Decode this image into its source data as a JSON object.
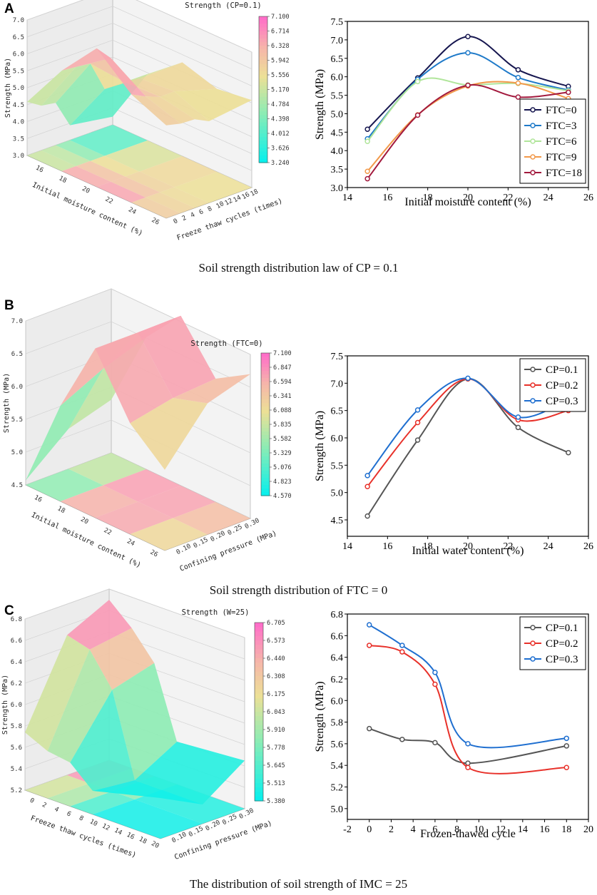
{
  "figure": {
    "panels": [
      {
        "label": "A",
        "caption": "Soil strength distribution law of CP = 0.1",
        "surface": {
          "title": "Strength (CP=0.1)",
          "z_label": "Strength (MPa)",
          "x_label": "Initial moisture content (%)",
          "y_label": "Freeze thaw cycles (times)",
          "z_ticks": [
            "3.0",
            "3.5",
            "4.0",
            "4.5",
            "5.0",
            "5.5",
            "6.0",
            "6.5",
            "7.0"
          ],
          "x_ticks": [
            "16",
            "18",
            "20",
            "22",
            "24",
            "26"
          ],
          "y_ticks": [
            "0",
            "2",
            "4",
            "6",
            "8",
            "10",
            "12",
            "14",
            "16",
            "18"
          ],
          "colorbar_ticks": [
            "7.100",
            "6.714",
            "6.328",
            "5.942",
            "5.556",
            "5.170",
            "4.784",
            "4.398",
            "4.012",
            "3.626",
            "3.240"
          ],
          "zmin": 3.0,
          "zmax": 7.0,
          "cmin": 3.24,
          "cmax": 7.1,
          "grid_x": [
            15,
            17.5,
            20,
            22.5,
            25
          ],
          "grid_y": [
            0,
            3,
            6,
            9,
            18
          ],
          "grid_z": [
            [
              4.58,
              5.97,
              7.09,
              6.19,
              5.74
            ],
            [
              4.32,
              5.93,
              6.65,
              5.98,
              5.64
            ],
            [
              4.25,
              5.87,
              5.78,
              5.82,
              5.62
            ],
            [
              3.44,
              4.97,
              5.75,
              5.83,
              5.41
            ],
            [
              3.24,
              4.96,
              5.77,
              5.45,
              5.58
            ]
          ]
        },
        "chart_data": {
          "type": "line",
          "xlabel": "Initial moisture content (%)",
          "ylabel": "Strength (MPa)",
          "xlim": [
            14,
            26
          ],
          "ylim": [
            3.0,
            7.5
          ],
          "xticks": [
            "14",
            "16",
            "18",
            "20",
            "22",
            "24",
            "26"
          ],
          "yticks": [
            "3.0",
            "3.5",
            "4.0",
            "4.5",
            "5.0",
            "5.5",
            "6.0",
            "6.5",
            "7.0",
            "7.5"
          ],
          "legend_position": "bottom-right",
          "x": [
            15,
            17.5,
            20,
            22.5,
            25
          ],
          "series": [
            {
              "name": "FTC=0",
              "color": "#16164f",
              "values": [
                4.58,
                5.97,
                7.09,
                6.19,
                5.74
              ]
            },
            {
              "name": "FTC=3",
              "color": "#1f7ac9",
              "values": [
                4.32,
                5.93,
                6.65,
                5.98,
                5.64
              ]
            },
            {
              "name": "FTC=6",
              "color": "#b0e59a",
              "values": [
                4.25,
                5.87,
                5.78,
                5.82,
                5.62
              ]
            },
            {
              "name": "FTC=9",
              "color": "#f2994a",
              "values": [
                3.44,
                4.97,
                5.75,
                5.83,
                5.41
              ]
            },
            {
              "name": "FTC=18",
              "color": "#a2193d",
              "values": [
                3.24,
                4.96,
                5.77,
                5.45,
                5.58
              ]
            }
          ]
        }
      },
      {
        "label": "B",
        "caption": "Soil strength distribution of FTC = 0",
        "surface": {
          "title": "Strength (FTC=0)",
          "z_label": "Strength (MPa)",
          "x_label": "Initial moisture content (%)",
          "y_label": "Confining pressure (MPa)",
          "z_ticks": [
            "4.5",
            "5.0",
            "5.5",
            "6.0",
            "6.5",
            "7.0"
          ],
          "x_ticks": [
            "16",
            "18",
            "20",
            "22",
            "24",
            "26"
          ],
          "y_ticks": [
            "0.10",
            "0.15",
            "0.20",
            "0.25",
            "0.30"
          ],
          "colorbar_ticks": [
            "7.100",
            "6.847",
            "6.594",
            "6.341",
            "6.088",
            "5.835",
            "5.582",
            "5.329",
            "5.076",
            "4.823",
            "4.570"
          ],
          "zmin": 4.5,
          "zmax": 7.0,
          "cmin": 4.57,
          "cmax": 7.1,
          "grid_x": [
            15,
            17.5,
            20,
            22.5,
            25
          ],
          "grid_y": [
            0.1,
            0.2,
            0.3
          ],
          "grid_z": [
            [
              4.57,
              5.96,
              7.08,
              6.19,
              5.73
            ],
            [
              5.11,
              6.28,
              7.08,
              6.33,
              6.5
            ],
            [
              5.31,
              6.51,
              7.09,
              6.38,
              6.7
            ]
          ]
        },
        "chart_data": {
          "type": "line",
          "xlabel": "Initial water content (%)",
          "ylabel": "Strength (MPa)",
          "xlim": [
            14,
            26
          ],
          "ylim": [
            4.2,
            7.5
          ],
          "xticks": [
            "14",
            "16",
            "18",
            "20",
            "22",
            "24",
            "26"
          ],
          "yticks": [
            "4.5",
            "5.0",
            "5.5",
            "6.0",
            "6.5",
            "7.0",
            "7.5"
          ],
          "legend_position": "top-right",
          "x": [
            15,
            17.5,
            20,
            22.5,
            25
          ],
          "series": [
            {
              "name": "CP=0.1",
              "color": "#555555",
              "values": [
                4.57,
                5.96,
                7.08,
                6.19,
                5.73
              ]
            },
            {
              "name": "CP=0.2",
              "color": "#e8312a",
              "values": [
                5.11,
                6.28,
                7.08,
                6.33,
                6.5
              ]
            },
            {
              "name": "CP=0.3",
              "color": "#1f6fd0",
              "values": [
                5.31,
                6.51,
                7.09,
                6.38,
                6.7
              ]
            }
          ]
        }
      },
      {
        "label": "C",
        "caption": "The distribution of soil strength of IMC = 25",
        "surface": {
          "title": "Strength (W=25)",
          "z_label": "Strength (MPa)",
          "x_label": "Freeze thaw cycles (times)",
          "y_label": "Confining pressure (MPa)",
          "z_ticks": [
            "5.2",
            "5.4",
            "5.6",
            "5.8",
            "6.0",
            "6.2",
            "6.4",
            "6.6",
            "6.8"
          ],
          "x_ticks": [
            "0",
            "2",
            "4",
            "6",
            "8",
            "10",
            "12",
            "14",
            "16",
            "18",
            "20"
          ],
          "y_ticks": [
            "0.10",
            "0.15",
            "0.20",
            "0.25",
            "0.30"
          ],
          "colorbar_ticks": [
            "6.705",
            "6.573",
            "6.440",
            "6.308",
            "6.175",
            "6.043",
            "5.910",
            "5.778",
            "5.645",
            "5.513",
            "5.380"
          ],
          "zmin": 5.2,
          "zmax": 6.8,
          "cmin": 5.38,
          "cmax": 6.705,
          "grid_x": [
            0,
            3,
            6,
            9,
            18
          ],
          "grid_y": [
            0.1,
            0.2,
            0.3
          ],
          "grid_z": [
            [
              5.74,
              5.64,
              5.61,
              5.42,
              5.58
            ],
            [
              6.51,
              6.45,
              6.15,
              5.38,
              5.38
            ],
            [
              6.7,
              6.51,
              6.26,
              5.6,
              5.65
            ]
          ]
        },
        "chart_data": {
          "type": "line",
          "xlabel": "Frozen-thawed cycle",
          "ylabel": "Strength (MPa)",
          "xlim": [
            -2,
            20
          ],
          "ylim": [
            4.9,
            6.8
          ],
          "xticks": [
            "-2",
            "0",
            "2",
            "4",
            "6",
            "8",
            "10",
            "12",
            "14",
            "16",
            "18",
            "20"
          ],
          "yticks": [
            "5.0",
            "5.2",
            "5.4",
            "5.6",
            "5.8",
            "6.0",
            "6.2",
            "6.4",
            "6.6",
            "6.8"
          ],
          "legend_position": "top-right",
          "x": [
            0,
            3,
            6,
            9,
            18
          ],
          "series": [
            {
              "name": "CP=0.1",
              "color": "#555555",
              "values": [
                5.74,
                5.64,
                5.61,
                5.42,
                5.58
              ]
            },
            {
              "name": "CP=0.2",
              "color": "#e8312a",
              "values": [
                6.51,
                6.45,
                6.15,
                5.38,
                5.38
              ]
            },
            {
              "name": "CP=0.3",
              "color": "#1f6fd0",
              "values": [
                6.7,
                6.51,
                6.26,
                5.6,
                5.65
              ]
            }
          ]
        }
      }
    ]
  }
}
